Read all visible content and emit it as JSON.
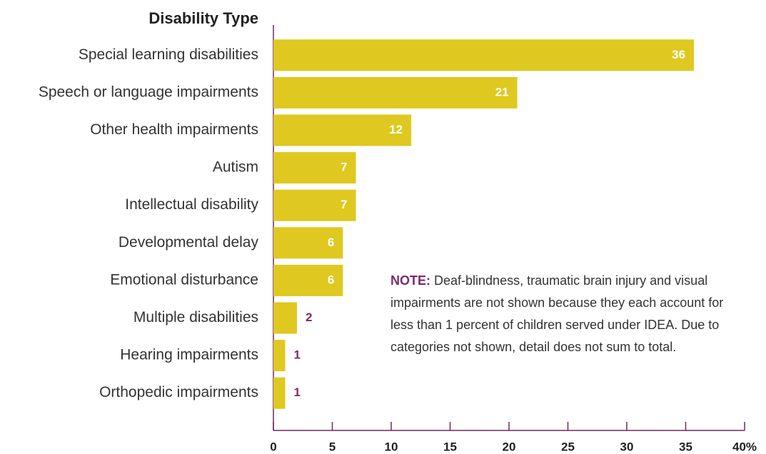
{
  "chart_data": {
    "type": "bar",
    "orientation": "horizontal",
    "category_axis_title": "Disability Type",
    "categories": [
      "Special learning disabilities",
      "Speech or language impairments",
      "Other health impairments",
      "Autism",
      "Intellectual disability",
      "Developmental delay",
      "Emotional disturbance",
      "Multiple disabilities",
      "Hearing impairments",
      "Orthopedic impairments"
    ],
    "values": [
      35.7,
      20.7,
      11.7,
      7,
      7,
      5.9,
      5.9,
      2,
      1,
      1
    ],
    "value_labels": [
      "36",
      "21",
      "12",
      "7",
      "7",
      "6",
      "6",
      "2",
      "1",
      "1"
    ],
    "color": "#dfc81f",
    "xlim": [
      0,
      40
    ],
    "xticks": [
      0,
      5,
      10,
      15,
      20,
      25,
      30,
      35,
      {
        "value": 40,
        "label": "40%"
      }
    ],
    "note_label": "NOTE:",
    "note": "Deaf-blindness, traumatic brain injury and visual impairments are not shown because they each account for less than 1 percent of children served under IDEA. Due to categories not shown, detail does not sum to total."
  }
}
